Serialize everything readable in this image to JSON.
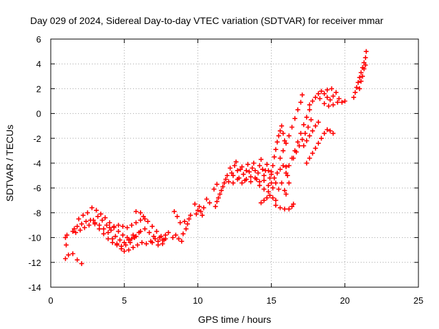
{
  "chart_data": {
    "type": "scatter",
    "title": "Day 029 of 2024, Sidereal Day-to-day VTEC variation (SDTVAR) for receiver mmar",
    "xlabel": "GPS time / hours",
    "ylabel": "SDTVAR / TECUs",
    "xlim": [
      0,
      25
    ],
    "ylim": [
      -14,
      6
    ],
    "xticks": [
      0,
      5,
      10,
      15,
      20,
      25
    ],
    "yticks": [
      -14,
      -12,
      -10,
      -8,
      -6,
      -4,
      -2,
      0,
      2,
      4,
      6
    ],
    "grid": true,
    "marker": "plus",
    "color": "#ff0000",
    "series": [
      {
        "values": [
          [
            1.0,
            -11.7
          ],
          [
            1.2,
            -11.4
          ],
          [
            1.5,
            -11.3
          ],
          [
            1.8,
            -11.8
          ],
          [
            2.1,
            -12.1
          ],
          [
            1.0,
            -10.0
          ],
          [
            1.1,
            -9.8
          ],
          [
            1.05,
            -10.6
          ],
          [
            1.5,
            -9.5
          ],
          [
            1.8,
            -9.1
          ],
          [
            2.1,
            -8.9
          ],
          [
            2.4,
            -8.7
          ],
          [
            2.7,
            -8.6
          ],
          [
            3.0,
            -8.8
          ],
          [
            3.3,
            -9.0
          ],
          [
            3.6,
            -9.3
          ],
          [
            3.9,
            -9.6
          ],
          [
            4.2,
            -10.1
          ],
          [
            4.5,
            -10.5
          ],
          [
            4.8,
            -10.9
          ],
          [
            5.0,
            -11.1
          ],
          [
            5.3,
            -11.0
          ],
          [
            5.6,
            -10.8
          ],
          [
            5.9,
            -10.6
          ],
          [
            6.2,
            -10.4
          ],
          [
            6.5,
            -10.5
          ],
          [
            6.8,
            -10.3
          ],
          [
            7.1,
            -10.1
          ],
          [
            7.4,
            -10.0
          ],
          [
            7.7,
            -10.2
          ],
          [
            1.6,
            -9.3
          ],
          [
            1.9,
            -8.5
          ],
          [
            2.2,
            -8.2
          ],
          [
            2.5,
            -8.0
          ],
          [
            2.8,
            -7.6
          ],
          [
            3.1,
            -7.8
          ],
          [
            3.4,
            -8.1
          ],
          [
            3.7,
            -8.4
          ],
          [
            4.0,
            -8.8
          ],
          [
            4.3,
            -9.2
          ],
          [
            4.6,
            -9.5
          ],
          [
            4.9,
            -9.8
          ],
          [
            5.2,
            -10.0
          ],
          [
            5.5,
            -10.1
          ],
          [
            5.8,
            -9.9
          ],
          [
            6.1,
            -9.5
          ],
          [
            6.4,
            -9.3
          ],
          [
            6.7,
            -9.6
          ],
          [
            7.0,
            -9.9
          ],
          [
            7.3,
            -10.3
          ],
          [
            7.6,
            -10.5
          ],
          [
            1.7,
            -9.6
          ],
          [
            2.0,
            -9.4
          ],
          [
            2.3,
            -9.2
          ],
          [
            2.6,
            -9.0
          ],
          [
            2.9,
            -8.6
          ],
          [
            3.2,
            -8.3
          ],
          [
            3.5,
            -8.6
          ],
          [
            3.8,
            -9.0
          ],
          [
            4.1,
            -9.4
          ],
          [
            4.4,
            -9.9
          ],
          [
            4.7,
            -10.2
          ],
          [
            5.0,
            -10.4
          ],
          [
            5.3,
            -10.2
          ],
          [
            5.6,
            -9.8
          ],
          [
            3.0,
            -8.9
          ],
          [
            3.3,
            -9.3
          ],
          [
            3.6,
            -9.7
          ],
          [
            3.9,
            -10.1
          ],
          [
            4.2,
            -10.4
          ],
          [
            4.5,
            -10.6
          ],
          [
            4.8,
            -10.7
          ],
          [
            5.1,
            -10.6
          ],
          [
            5.4,
            -10.4
          ],
          [
            5.7,
            -10.0
          ],
          [
            6.0,
            -9.6
          ],
          [
            4.0,
            -9.2
          ],
          [
            4.3,
            -9.1
          ],
          [
            4.6,
            -9.0
          ],
          [
            4.9,
            -9.1
          ],
          [
            5.2,
            -9.2
          ],
          [
            5.5,
            -9.0
          ],
          [
            5.8,
            -8.8
          ],
          [
            6.1,
            -8.6
          ],
          [
            6.4,
            -8.5
          ],
          [
            5.8,
            -7.9
          ],
          [
            6.1,
            -8.0
          ],
          [
            6.3,
            -8.3
          ],
          [
            6.6,
            -8.7
          ],
          [
            6.9,
            -9.1
          ],
          [
            7.2,
            -9.5
          ],
          [
            7.5,
            -9.9
          ],
          [
            7.8,
            -10.1
          ],
          [
            7.6,
            -10.2
          ],
          [
            7.8,
            -9.8
          ],
          [
            8.0,
            -9.6
          ],
          [
            7.3,
            -10.6
          ],
          [
            6.9,
            -10.4
          ],
          [
            8.3,
            -10.0
          ],
          [
            8.5,
            -9.8
          ],
          [
            8.7,
            -10.1
          ],
          [
            8.9,
            -10.3
          ],
          [
            9.0,
            -9.7
          ],
          [
            9.2,
            -9.3
          ],
          [
            9.3,
            -8.9
          ],
          [
            9.4,
            -8.5
          ],
          [
            9.5,
            -8.2
          ],
          [
            9.1,
            -8.7
          ],
          [
            8.4,
            -7.9
          ],
          [
            8.6,
            -8.3
          ],
          [
            8.8,
            -8.8
          ],
          [
            9.9,
            -8.1
          ],
          [
            10.0,
            -7.8
          ],
          [
            10.1,
            -7.5
          ],
          [
            10.2,
            -7.9
          ],
          [
            10.3,
            -8.2
          ],
          [
            10.4,
            -7.6
          ],
          [
            9.8,
            -7.3
          ],
          [
            10.6,
            -6.9
          ],
          [
            10.8,
            -7.2
          ],
          [
            11.2,
            -7.5
          ],
          [
            11.3,
            -7.1
          ],
          [
            11.4,
            -6.8
          ],
          [
            11.5,
            -6.5
          ],
          [
            11.6,
            -6.2
          ],
          [
            11.7,
            -5.9
          ],
          [
            11.8,
            -5.6
          ],
          [
            11.9,
            -5.3
          ],
          [
            12.0,
            -5.0
          ],
          [
            12.1,
            -5.5
          ],
          [
            11.1,
            -6.1
          ],
          [
            11.3,
            -5.7
          ],
          [
            12.2,
            -4.4
          ],
          [
            12.3,
            -4.8
          ],
          [
            12.4,
            -5.0
          ],
          [
            12.5,
            -4.2
          ],
          [
            12.6,
            -3.9
          ],
          [
            12.7,
            -4.6
          ],
          [
            12.8,
            -5.2
          ],
          [
            12.9,
            -4.5
          ],
          [
            13.0,
            -4.3
          ],
          [
            13.1,
            -4.9
          ],
          [
            13.2,
            -5.4
          ],
          [
            13.3,
            -4.6
          ],
          [
            13.4,
            -4.1
          ],
          [
            13.5,
            -4.7
          ],
          [
            13.6,
            -5.1
          ],
          [
            13.7,
            -4.4
          ],
          [
            13.8,
            -4.0
          ],
          [
            13.9,
            -4.6
          ],
          [
            14.0,
            -5.3
          ],
          [
            14.1,
            -4.8
          ],
          [
            14.2,
            -4.2
          ],
          [
            14.3,
            -3.7
          ],
          [
            14.4,
            -4.5
          ],
          [
            14.5,
            -5.0
          ],
          [
            14.6,
            -4.6
          ],
          [
            14.7,
            -4.1
          ],
          [
            14.8,
            -4.6
          ],
          [
            14.9,
            -5.2
          ],
          [
            15.0,
            -4.7
          ],
          [
            12.4,
            -5.6
          ],
          [
            12.7,
            -5.3
          ],
          [
            13.0,
            -5.6
          ],
          [
            13.3,
            -5.3
          ],
          [
            13.6,
            -5.5
          ],
          [
            13.9,
            -5.2
          ],
          [
            14.2,
            -5.5
          ],
          [
            14.5,
            -5.4
          ],
          [
            14.8,
            -5.8
          ],
          [
            15.0,
            -5.6
          ],
          [
            14.2,
            -5.8
          ],
          [
            14.5,
            -6.1
          ],
          [
            14.8,
            -6.3
          ],
          [
            15.1,
            -6.0
          ],
          [
            15.3,
            -5.6
          ],
          [
            14.3,
            -7.2
          ],
          [
            14.5,
            -7.0
          ],
          [
            14.7,
            -6.8
          ],
          [
            14.9,
            -6.6
          ],
          [
            15.1,
            -6.8
          ],
          [
            15.3,
            -7.0
          ],
          [
            15.3,
            -7.4
          ],
          [
            15.6,
            -7.6
          ],
          [
            15.9,
            -7.7
          ],
          [
            16.2,
            -7.7
          ],
          [
            16.4,
            -7.5
          ],
          [
            16.5,
            -7.3
          ],
          [
            15.2,
            -5.2
          ],
          [
            15.4,
            -4.8
          ],
          [
            15.6,
            -4.5
          ],
          [
            15.8,
            -4.2
          ],
          [
            16.0,
            -4.3
          ],
          [
            16.1,
            -5.0
          ],
          [
            16.2,
            -5.6
          ],
          [
            15.7,
            -5.6
          ],
          [
            15.5,
            -6.1
          ],
          [
            15.9,
            -6.2
          ],
          [
            16.0,
            -6.5
          ],
          [
            15.0,
            -4.9
          ],
          [
            15.1,
            -4.2
          ],
          [
            15.2,
            -3.5
          ],
          [
            15.3,
            -2.9
          ],
          [
            15.4,
            -2.3
          ],
          [
            15.5,
            -1.8
          ],
          [
            15.6,
            -1.4
          ],
          [
            15.7,
            -1.0
          ],
          [
            15.8,
            -1.6
          ],
          [
            15.9,
            -2.2
          ],
          [
            15.6,
            -3.6
          ],
          [
            15.8,
            -3.0
          ],
          [
            16.0,
            -2.4
          ],
          [
            16.2,
            -1.8
          ],
          [
            16.4,
            -1.1
          ],
          [
            16.6,
            -0.4
          ],
          [
            16.8,
            0.3
          ],
          [
            17.0,
            0.9
          ],
          [
            17.1,
            1.5
          ],
          [
            16.0,
            -4.8
          ],
          [
            16.2,
            -4.2
          ],
          [
            16.4,
            -3.6
          ],
          [
            16.6,
            -3.0
          ],
          [
            16.8,
            -2.3
          ],
          [
            17.0,
            -1.6
          ],
          [
            17.2,
            -0.9
          ],
          [
            17.4,
            -0.3
          ],
          [
            17.6,
            0.3
          ],
          [
            16.5,
            -3.6
          ],
          [
            16.7,
            -3.1
          ],
          [
            16.9,
            -2.6
          ],
          [
            17.1,
            -2.1
          ],
          [
            17.3,
            -1.6
          ],
          [
            17.5,
            -1.1
          ],
          [
            17.7,
            -0.5
          ],
          [
            17.2,
            -2.6
          ],
          [
            17.4,
            -2.2
          ],
          [
            17.6,
            -1.8
          ],
          [
            17.8,
            -1.4
          ],
          [
            18.0,
            -1.0
          ],
          [
            18.2,
            -0.7
          ],
          [
            17.4,
            -4.0
          ],
          [
            17.6,
            -3.6
          ],
          [
            17.8,
            -3.2
          ],
          [
            18.0,
            -2.8
          ],
          [
            18.2,
            -2.4
          ],
          [
            18.4,
            -2.0
          ],
          [
            18.6,
            -1.6
          ],
          [
            18.8,
            -1.3
          ],
          [
            19.0,
            -1.4
          ],
          [
            19.2,
            -1.6
          ],
          [
            17.6,
            0.7
          ],
          [
            17.8,
            1.0
          ],
          [
            18.0,
            1.3
          ],
          [
            18.2,
            1.6
          ],
          [
            18.4,
            1.8
          ],
          [
            18.6,
            1.6
          ],
          [
            18.8,
            1.3
          ],
          [
            19.0,
            1.1
          ],
          [
            19.2,
            1.4
          ],
          [
            19.4,
            1.7
          ],
          [
            19.6,
            1.2
          ],
          [
            19.8,
            0.9
          ],
          [
            20.0,
            1.0
          ],
          [
            18.8,
            1.9
          ],
          [
            19.1,
            2.0
          ],
          [
            18.3,
            1.2
          ],
          [
            18.6,
            0.8
          ],
          [
            18.9,
            0.6
          ],
          [
            19.2,
            0.7
          ],
          [
            19.5,
            0.9
          ],
          [
            20.6,
            1.3
          ],
          [
            20.7,
            1.7
          ],
          [
            20.8,
            2.1
          ],
          [
            20.9,
            2.5
          ],
          [
            21.0,
            2.9
          ],
          [
            21.1,
            3.3
          ],
          [
            21.2,
            3.7
          ],
          [
            21.3,
            4.1
          ],
          [
            21.4,
            4.5
          ],
          [
            21.45,
            5.0
          ],
          [
            21.0,
            2.0
          ],
          [
            21.1,
            2.6
          ],
          [
            21.2,
            3.0
          ],
          [
            21.3,
            3.6
          ],
          [
            21.4,
            3.9
          ]
        ]
      }
    ]
  }
}
